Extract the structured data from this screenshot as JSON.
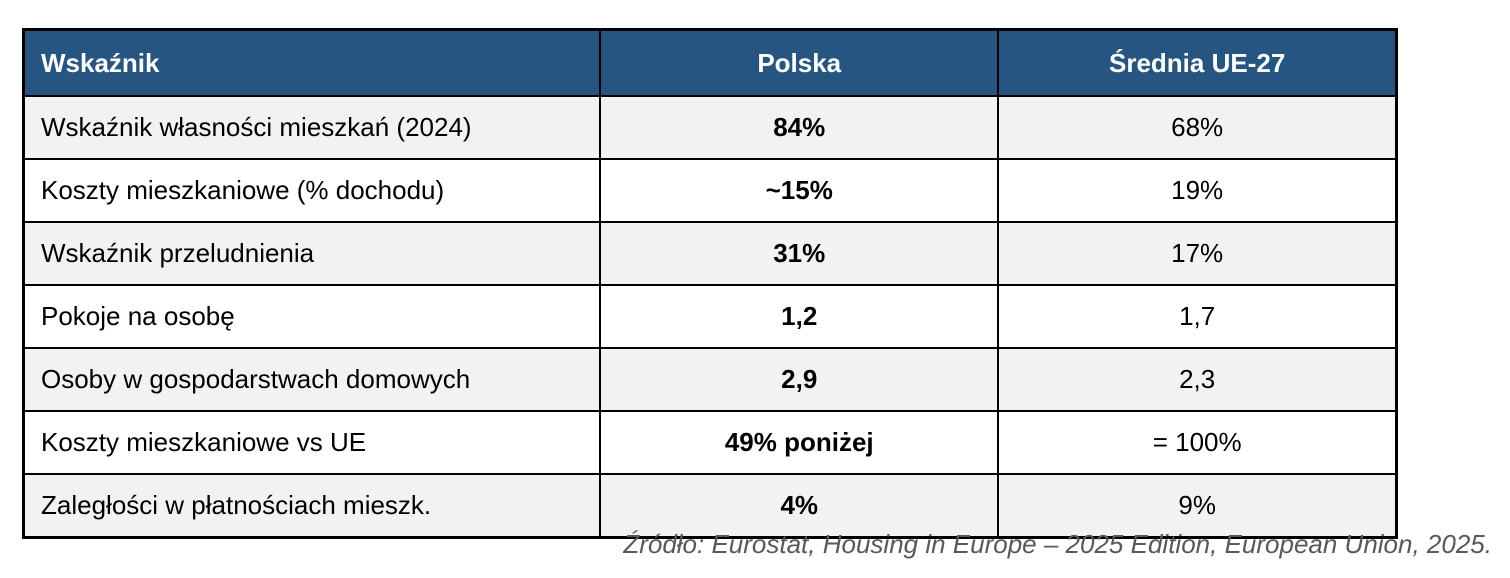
{
  "chart_data": {
    "type": "table",
    "columns": [
      "Wskaźnik",
      "Polska",
      "Średnia UE-27"
    ],
    "rows": [
      [
        "Wskaźnik własności mieszkań (2024)",
        "84%",
        "68%"
      ],
      [
        "Koszty mieszkaniowe (% dochodu)",
        "~15%",
        "19%"
      ],
      [
        "Wskaźnik przeludnienia",
        "31%",
        "17%"
      ],
      [
        "Pokoje na osobę",
        "1,2",
        "1,7"
      ],
      [
        "Osoby w gospodarstwach domowych",
        "2,9",
        "2,3"
      ],
      [
        "Koszty mieszkaniowe vs UE",
        "49% poniżej",
        "= 100%"
      ],
      [
        "Zaległości w płatnościach mieszk.",
        "4%",
        "9%"
      ]
    ],
    "source": "Źródło: Eurostat, Housing in Europe – 2025 Edition, European Union, 2025.",
    "layout_hints": {
      "polska_column_bold": true,
      "striped_rows": true,
      "first_stripe": "gray"
    }
  },
  "colors": {
    "header_bg": "#275582",
    "header_text": "#FFFFFF",
    "row_stripe_bg": "#F2F2F2",
    "row_bg": "#FFFFFF",
    "border": "#000000",
    "body_text": "#000000",
    "source_text": "#595959"
  }
}
